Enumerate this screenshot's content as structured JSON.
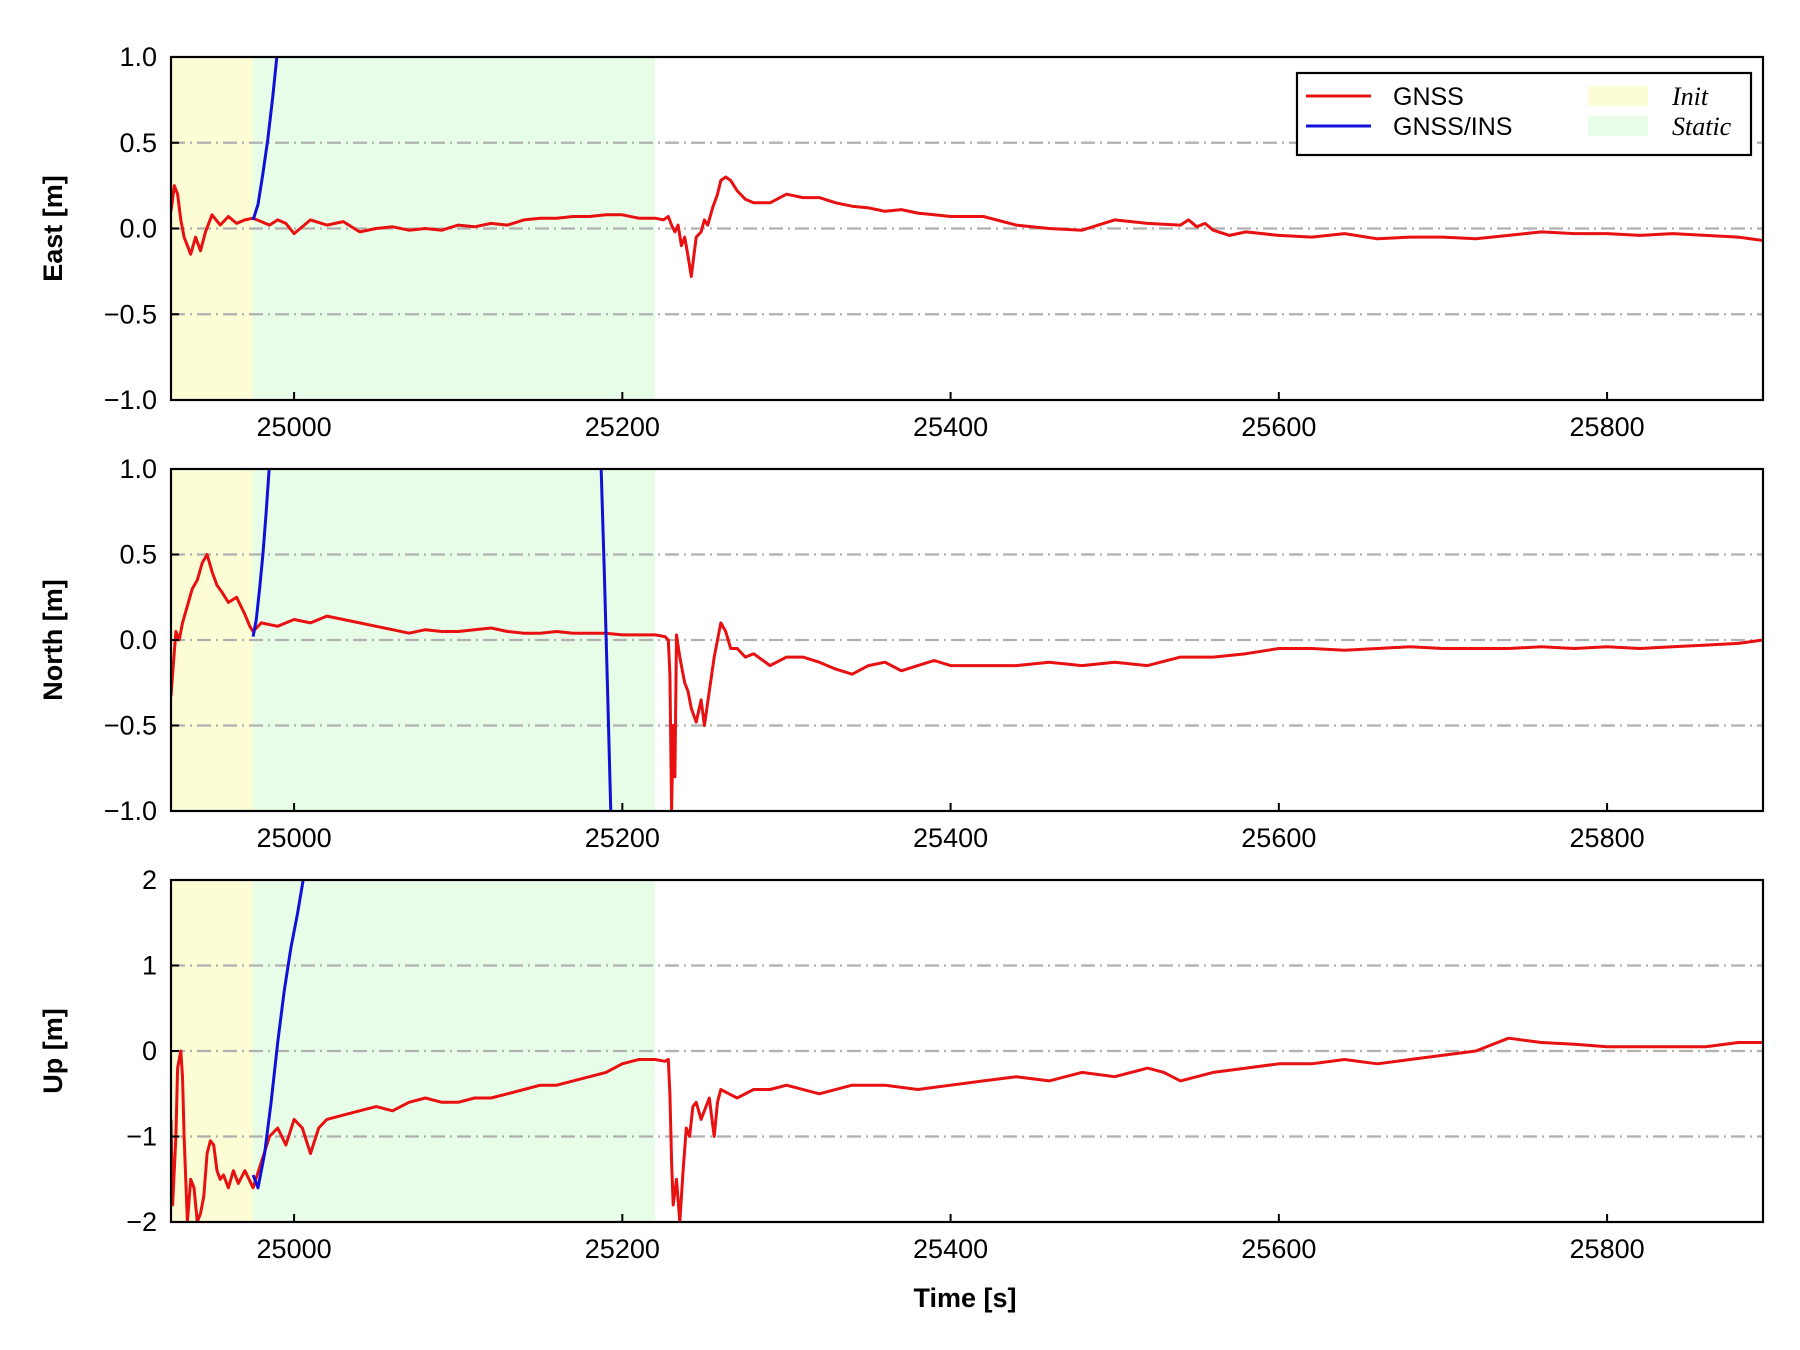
{
  "chart_data": {
    "type": "line",
    "x_range": [
      24925,
      25895
    ],
    "x_ticks": [
      25000,
      25200,
      25400,
      25600,
      25800
    ],
    "x_tick_labels": [
      "25000",
      "25200",
      "25400",
      "25600",
      "25800"
    ],
    "xlabel": "Time [s]",
    "grid": "horizontal dash-dot at y ticks",
    "legend": {
      "placement": "top-right of top panel",
      "entries": [
        {
          "label": "GNSS",
          "kind": "line",
          "color": "#e81010"
        },
        {
          "label": "GNSS/INS",
          "kind": "line",
          "color": "#1010d8"
        },
        {
          "label": "Init",
          "kind": "patch",
          "color": "#fdfdd5"
        },
        {
          "label": "Static",
          "kind": "patch",
          "color": "#e7fde7"
        }
      ]
    },
    "spans": [
      {
        "name": "Init",
        "x": [
          24925,
          24975
        ],
        "color": "#fdfdd5"
      },
      {
        "name": "Static",
        "x": [
          24975,
          25220
        ],
        "color": "#e7fde7"
      }
    ],
    "panels": [
      {
        "ylabel": "East [m]",
        "ylim": [
          -1.0,
          1.0
        ],
        "y_ticks": [
          1.0,
          0.5,
          0.0,
          -0.5,
          -1.0
        ],
        "y_tick_labels": [
          "1.0",
          "0.5",
          "0.0",
          "−0.5",
          "−1.0"
        ],
        "series": [
          {
            "name": "GNSS",
            "color": "#e81010",
            "x": [
              24925,
              24927,
              24929,
              24931,
              24933,
              24935,
              24937,
              24940,
              24943,
              24946,
              24950,
              24955,
              24960,
              24965,
              24970,
              24975,
              24980,
              24985,
              24990,
              24995,
              25000,
              25010,
              25020,
              25030,
              25040,
              25050,
              25060,
              25070,
              25080,
              25090,
              25100,
              25110,
              25120,
              25130,
              25140,
              25150,
              25160,
              25170,
              25180,
              25190,
              25200,
              25210,
              25220,
              25225,
              25228,
              25230,
              25232,
              25234,
              25236,
              25238,
              25240,
              25242,
              25245,
              25248,
              25250,
              25252,
              25255,
              25258,
              25260,
              25263,
              25266,
              25270,
              25275,
              25280,
              25290,
              25300,
              25310,
              25320,
              25330,
              25340,
              25350,
              25360,
              25370,
              25380,
              25390,
              25400,
              25420,
              25440,
              25460,
              25480,
              25500,
              25520,
              25540,
              25545,
              25550,
              25555,
              25560,
              25570,
              25580,
              25600,
              25620,
              25640,
              25660,
              25680,
              25700,
              25720,
              25740,
              25760,
              25780,
              25800,
              25820,
              25840,
              25860,
              25880,
              25895
            ],
            "y": [
              0.1,
              0.25,
              0.2,
              0.05,
              -0.05,
              -0.1,
              -0.15,
              -0.05,
              -0.13,
              -0.02,
              0.08,
              0.02,
              0.07,
              0.03,
              0.05,
              0.06,
              0.04,
              0.02,
              0.05,
              0.03,
              -0.03,
              0.05,
              0.02,
              0.04,
              -0.02,
              0.0,
              0.01,
              -0.01,
              0.0,
              -0.01,
              0.02,
              0.01,
              0.03,
              0.02,
              0.05,
              0.06,
              0.06,
              0.07,
              0.07,
              0.08,
              0.08,
              0.06,
              0.06,
              0.05,
              0.07,
              0.02,
              -0.02,
              0.02,
              -0.1,
              -0.05,
              -0.16,
              -0.28,
              -0.05,
              -0.02,
              0.05,
              0.02,
              0.12,
              0.2,
              0.28,
              0.3,
              0.28,
              0.22,
              0.17,
              0.15,
              0.15,
              0.2,
              0.18,
              0.18,
              0.15,
              0.13,
              0.12,
              0.1,
              0.11,
              0.09,
              0.08,
              0.07,
              0.07,
              0.02,
              0.0,
              -0.01,
              0.05,
              0.03,
              0.02,
              0.05,
              0.01,
              0.03,
              -0.01,
              -0.04,
              -0.02,
              -0.04,
              -0.05,
              -0.03,
              -0.06,
              -0.05,
              -0.05,
              -0.06,
              -0.04,
              -0.02,
              -0.03,
              -0.03,
              -0.04,
              -0.03,
              -0.04,
              -0.05,
              -0.07
            ]
          },
          {
            "name": "GNSS/INS",
            "color": "#1010d8",
            "x": [
              24975,
              24978,
              24981,
              24984,
              24987,
              24990
            ],
            "y": [
              0.05,
              0.14,
              0.32,
              0.52,
              0.77,
              1.05
            ]
          }
        ]
      },
      {
        "ylabel": "North [m]",
        "ylim": [
          -1.0,
          1.0
        ],
        "y_ticks": [
          1.0,
          0.5,
          0.0,
          -0.5,
          -1.0
        ],
        "y_tick_labels": [
          "1.0",
          "0.5",
          "0.0",
          "−0.5",
          "−1.0"
        ],
        "series": [
          {
            "name": "GNSS",
            "color": "#e81010",
            "x": [
              24925,
              24926,
              24928,
              24930,
              24932,
              24935,
              24938,
              24941,
              24944,
              24947,
              24950,
              24953,
              24956,
              24960,
              24965,
              24970,
              24973,
              24975,
              24980,
              24990,
              25000,
              25010,
              25020,
              25030,
              25040,
              25050,
              25060,
              25070,
              25080,
              25090,
              25100,
              25110,
              25120,
              25130,
              25140,
              25150,
              25160,
              25170,
              25180,
              25190,
              25200,
              25210,
              25220,
              25226,
              25228,
              25229,
              25230,
              25231,
              25232,
              25233,
              25235,
              25238,
              25240,
              25242,
              25245,
              25248,
              25250,
              25253,
              25256,
              25258,
              25260,
              25263,
              25266,
              25270,
              25275,
              25280,
              25290,
              25300,
              25310,
              25320,
              25330,
              25340,
              25350,
              25360,
              25370,
              25380,
              25390,
              25400,
              25420,
              25440,
              25460,
              25480,
              25500,
              25520,
              25540,
              25560,
              25580,
              25600,
              25620,
              25640,
              25660,
              25680,
              25700,
              25720,
              25740,
              25760,
              25780,
              25800,
              25820,
              25840,
              25860,
              25880,
              25895
            ],
            "y": [
              -0.33,
              -0.2,
              0.05,
              0.0,
              0.1,
              0.2,
              0.3,
              0.35,
              0.45,
              0.5,
              0.4,
              0.32,
              0.28,
              0.22,
              0.25,
              0.15,
              0.08,
              0.05,
              0.1,
              0.08,
              0.12,
              0.1,
              0.14,
              0.12,
              0.1,
              0.08,
              0.06,
              0.04,
              0.06,
              0.05,
              0.05,
              0.06,
              0.07,
              0.05,
              0.04,
              0.04,
              0.05,
              0.04,
              0.04,
              0.04,
              0.03,
              0.03,
              0.03,
              0.02,
              0.0,
              -0.2,
              -1.0,
              -0.5,
              -0.8,
              0.03,
              -0.1,
              -0.25,
              -0.3,
              -0.4,
              -0.48,
              -0.35,
              -0.5,
              -0.3,
              -0.1,
              0.0,
              0.1,
              0.05,
              -0.05,
              -0.05,
              -0.1,
              -0.08,
              -0.15,
              -0.1,
              -0.1,
              -0.13,
              -0.17,
              -0.2,
              -0.15,
              -0.13,
              -0.18,
              -0.15,
              -0.12,
              -0.15,
              -0.15,
              -0.15,
              -0.13,
              -0.15,
              -0.13,
              -0.15,
              -0.1,
              -0.1,
              -0.08,
              -0.05,
              -0.05,
              -0.06,
              -0.05,
              -0.04,
              -0.05,
              -0.05,
              -0.05,
              -0.04,
              -0.05,
              -0.04,
              -0.05,
              -0.04,
              -0.03,
              -0.02,
              0.0
            ]
          },
          {
            "name": "GNSS/INS",
            "color": "#1010d8",
            "x": [
              24975,
              24977,
              24979,
              24981,
              24983,
              24985
            ],
            "y": [
              0.02,
              0.12,
              0.3,
              0.5,
              0.75,
              1.03
            ]
          },
          {
            "name": "GNSS/INS",
            "color": "#1010d8",
            "x": [
              25187,
              25189,
              25191,
              25193
            ],
            "y": [
              1.03,
              0.4,
              -0.3,
              -1.03
            ]
          }
        ]
      },
      {
        "ylabel": "Up [m]",
        "ylim": [
          -2,
          2
        ],
        "y_ticks": [
          2,
          1,
          0,
          -1,
          -2
        ],
        "y_tick_labels": [
          "2",
          "1",
          "0",
          "−1",
          "−2"
        ],
        "series": [
          {
            "name": "GNSS",
            "color": "#e81010",
            "x": [
              24925,
              24926,
              24928,
              24929,
              24931,
              24932,
              24933,
              24935,
              24937,
              24939,
              24941,
              24943,
              24945,
              24947,
              24949,
              24951,
              24953,
              24955,
              24957,
              24960,
              24963,
              24966,
              24970,
              24975,
              24980,
              24985,
              24990,
              24995,
              25000,
              25005,
              25010,
              25015,
              25020,
              25030,
              25040,
              25050,
              25060,
              25070,
              25080,
              25090,
              25100,
              25110,
              25120,
              25130,
              25140,
              25150,
              25160,
              25170,
              25180,
              25190,
              25200,
              25210,
              25220,
              25226,
              25228,
              25229,
              25230,
              25231,
              25233,
              25235,
              25237,
              25239,
              25241,
              25243,
              25245,
              25248,
              25250,
              25253,
              25256,
              25258,
              25260,
              25265,
              25270,
              25280,
              25290,
              25300,
              25320,
              25340,
              25360,
              25380,
              25400,
              25420,
              25440,
              25460,
              25480,
              25500,
              25520,
              25530,
              25540,
              25560,
              25580,
              25600,
              25620,
              25640,
              25660,
              25680,
              25700,
              25720,
              25740,
              25760,
              25780,
              25800,
              25820,
              25840,
              25860,
              25880,
              25895
            ],
            "y": [
              -0.8,
              -1.8,
              -1.0,
              -0.2,
              0.0,
              -0.3,
              -1.0,
              -2.0,
              -1.5,
              -1.6,
              -2.0,
              -1.9,
              -1.7,
              -1.2,
              -1.05,
              -1.1,
              -1.4,
              -1.5,
              -1.45,
              -1.6,
              -1.4,
              -1.55,
              -1.4,
              -1.6,
              -1.3,
              -1.0,
              -0.9,
              -1.1,
              -0.8,
              -0.9,
              -1.2,
              -0.9,
              -0.8,
              -0.75,
              -0.7,
              -0.65,
              -0.7,
              -0.6,
              -0.55,
              -0.6,
              -0.6,
              -0.55,
              -0.55,
              -0.5,
              -0.45,
              -0.4,
              -0.4,
              -0.35,
              -0.3,
              -0.25,
              -0.15,
              -0.1,
              -0.1,
              -0.12,
              -0.1,
              -0.5,
              -1.3,
              -1.8,
              -1.5,
              -2.0,
              -1.4,
              -0.9,
              -1.0,
              -0.65,
              -0.6,
              -0.8,
              -0.7,
              -0.55,
              -1.0,
              -0.6,
              -0.45,
              -0.5,
              -0.55,
              -0.45,
              -0.45,
              -0.4,
              -0.5,
              -0.4,
              -0.4,
              -0.45,
              -0.4,
              -0.35,
              -0.3,
              -0.35,
              -0.25,
              -0.3,
              -0.2,
              -0.25,
              -0.35,
              -0.25,
              -0.2,
              -0.15,
              -0.15,
              -0.1,
              -0.15,
              -0.1,
              -0.05,
              0.0,
              0.15,
              0.1,
              0.08,
              0.05,
              0.05,
              0.05,
              0.05,
              0.1,
              0.1
            ]
          },
          {
            "name": "GNSS/INS",
            "color": "#1010d8",
            "x": [
              24975,
              24978,
              24982,
              24986,
              24990,
              24994,
              24998,
              25002,
              25006
            ],
            "y": [
              -1.45,
              -1.6,
              -1.2,
              -0.6,
              0.1,
              0.7,
              1.2,
              1.6,
              2.05
            ]
          }
        ]
      }
    ]
  }
}
